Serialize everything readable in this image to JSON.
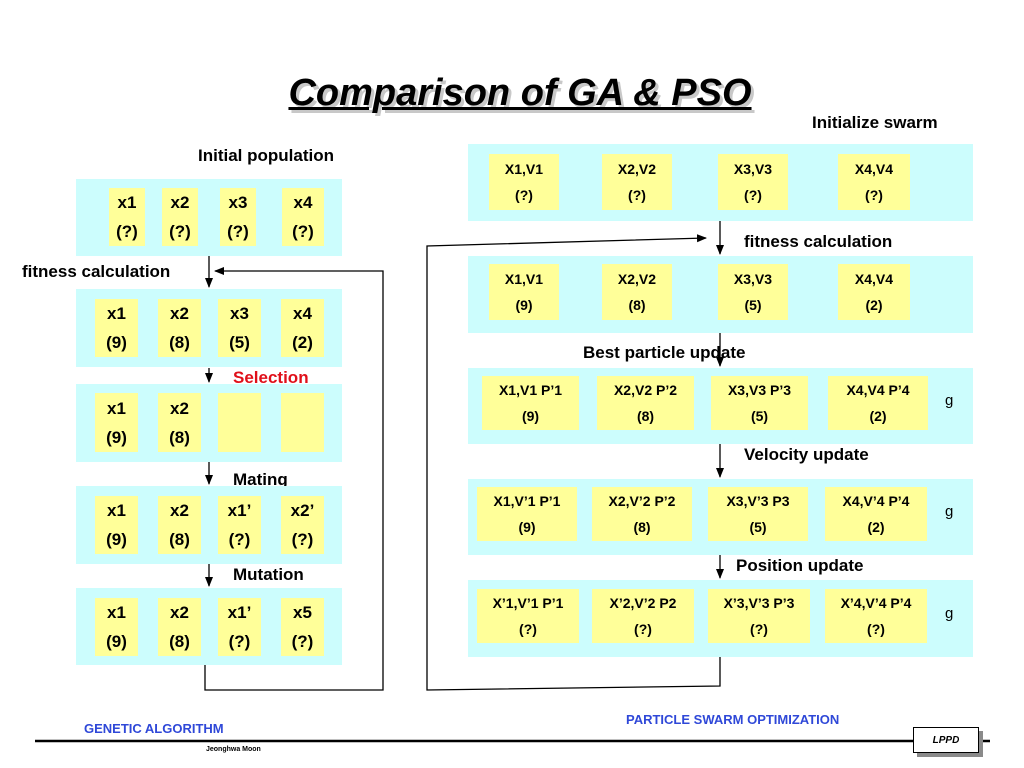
{
  "title": "Comparison of GA & PSO",
  "ga": {
    "label_initial": "Initial population",
    "label_fitness": "fitness calculation",
    "label_selection": "Selection",
    "label_mating": "Mating",
    "label_mutation": "Mutation",
    "rows": [
      [
        [
          "x1",
          "(?)"
        ],
        [
          "x2",
          "(?)"
        ],
        [
          "x3",
          "(?)"
        ],
        [
          "x4",
          "(?)"
        ]
      ],
      [
        [
          "x1",
          "(9)"
        ],
        [
          "x2",
          "(8)"
        ],
        [
          "x3",
          "(5)"
        ],
        [
          "x4",
          "(2)"
        ]
      ],
      [
        [
          "x1",
          "(9)"
        ],
        [
          "x2",
          "(8)"
        ],
        [
          "",
          ""
        ],
        [
          "",
          ""
        ]
      ],
      [
        [
          "x1",
          "(9)"
        ],
        [
          "x2",
          "(8)"
        ],
        [
          "x1’",
          "(?)"
        ],
        [
          "x2’",
          "(?)"
        ]
      ],
      [
        [
          "x1",
          "(9)"
        ],
        [
          "x2",
          "(8)"
        ],
        [
          "x1’",
          "(?)"
        ],
        [
          "x5",
          "(?)"
        ]
      ]
    ]
  },
  "pso": {
    "label_init": "Initialize swarm",
    "label_fitness": "fitness calculation",
    "label_best": "Best particle update",
    "label_velocity": "Velocity update",
    "label_position": "Position update",
    "g_label": "g",
    "rows": [
      [
        [
          "X1,V1",
          "(?)"
        ],
        [
          "X2,V2",
          "(?)"
        ],
        [
          "X3,V3",
          "(?)"
        ],
        [
          "X4,V4",
          "(?)"
        ]
      ],
      [
        [
          "X1,V1",
          "(9)"
        ],
        [
          "X2,V2",
          "(8)"
        ],
        [
          "X3,V3",
          "(5)"
        ],
        [
          "X4,V4",
          "(2)"
        ]
      ],
      [
        [
          "X1,V1 P’1",
          "(9)"
        ],
        [
          "X2,V2 P’2",
          "(8)"
        ],
        [
          "X3,V3 P’3",
          "(5)"
        ],
        [
          "X4,V4 P’4",
          "(2)"
        ]
      ],
      [
        [
          "X1,V’1 P’1",
          "(9)"
        ],
        [
          "X2,V’2 P’2",
          "(8)"
        ],
        [
          "X3,V’3 P3",
          "(5)"
        ],
        [
          "X4,V’4 P’4",
          "(2)"
        ]
      ],
      [
        [
          "X’1,V’1 P’1",
          "(?)"
        ],
        [
          "X’2,V’2 P2",
          "(?)"
        ],
        [
          "X’3,V’3 P’3",
          "(?)"
        ],
        [
          "X’4,V’4 P’4",
          "(?)"
        ]
      ]
    ]
  },
  "footer": {
    "left": "GENETIC ALGORITHM",
    "right": "PARTICLE SWARM OPTIMIZATION",
    "author": "Jeonghwa Moon",
    "logo": "LPPD"
  }
}
